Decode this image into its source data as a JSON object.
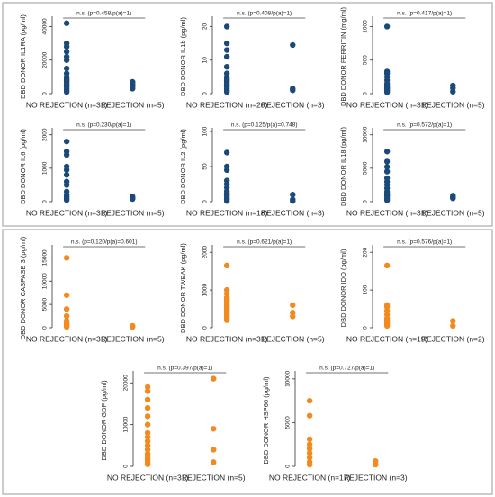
{
  "chart_data": [
    {
      "type": "strip",
      "ylabel": "DBD DONOR IL1RA (pg/ml)",
      "annotation": "n.s. (p=0.458/p(a)=1)",
      "categories": [
        "NO REJECTION (n=31)",
        "REJECTION (n=5)"
      ],
      "color": "#1b4a78",
      "ylim": [
        0,
        44000
      ],
      "yticks": [
        0,
        20000,
        40000
      ],
      "values": [
        [
          42000,
          30000,
          28000,
          25000,
          22000,
          20000,
          15000,
          12000,
          10000,
          9000,
          8000,
          7000,
          6000,
          5000,
          4000,
          3000,
          2000,
          1000
        ],
        [
          7000,
          6000,
          5000,
          4000,
          3000
        ]
      ]
    },
    {
      "type": "strip",
      "ylabel": "DBD DONOR IL1b (pg/ml)",
      "annotation": "n.s. (p=0.408/p(a)=1)",
      "categories": [
        "NO REJECTION (n=20)",
        "REJECTION (n=3)"
      ],
      "color": "#1b4a78",
      "ylim": [
        0,
        22
      ],
      "yticks": [
        0,
        10,
        20
      ],
      "values": [
        [
          20,
          15,
          13,
          11,
          8,
          6,
          5,
          4.5,
          4,
          3.5,
          3,
          2.5,
          2,
          1.5,
          1,
          0.5
        ],
        [
          14.5,
          1.5,
          1
        ]
      ]
    },
    {
      "type": "strip",
      "ylabel": "DBD DONOR FERRITIN (mg/ml)",
      "annotation": "n.s. (p=0.417/p(a)=1)",
      "categories": [
        "NO REJECTION (n=31)",
        "REJECTION (n=5)"
      ],
      "color": "#1b4a78",
      "ylim": [
        0,
        1100
      ],
      "yticks": [
        0,
        500,
        1000
      ],
      "values": [
        [
          1000,
          330,
          300,
          250,
          200,
          150,
          120,
          100,
          80,
          60,
          40,
          20
        ],
        [
          120,
          80,
          30
        ]
      ]
    },
    {
      "type": "strip",
      "ylabel": "DBD DONOR IL6 (pg/ml)",
      "annotation": "n.s. (p=0.230/p(a)=1)",
      "categories": [
        "NO REJECTION (n=31)",
        "REJECTION (n=5)"
      ],
      "color": "#1b4a78",
      "ylim": [
        0,
        2100
      ],
      "yticks": [
        0,
        1000,
        2000
      ],
      "values": [
        [
          1800,
          1500,
          1400,
          1050,
          950,
          800,
          600,
          500,
          300,
          200,
          150,
          100,
          50
        ],
        [
          150,
          100,
          80
        ]
      ]
    },
    {
      "type": "strip",
      "ylabel": "DBD DONOR IL2 (pg/ml)",
      "annotation": "n.s. (p=0.125/p(a)=0.748)",
      "categories": [
        "NO REJECTION (n=18)",
        "REJECTION (n=3)"
      ],
      "color": "#1b4a78",
      "ylim": [
        0,
        100
      ],
      "yticks": [
        0,
        50,
        100
      ],
      "values": [
        [
          70,
          50,
          45,
          30,
          25,
          20,
          15,
          12,
          10,
          8,
          5,
          3,
          1
        ],
        [
          10,
          3,
          1
        ]
      ]
    },
    {
      "type": "strip",
      "ylabel": "DBD DONOR IL18 (pg/ml)",
      "annotation": "n.s. (p=0.572/p(a)=1)",
      "categories": [
        "NO REJECTION (n=31)",
        "REJECTION (n=5)"
      ],
      "color": "#1b4a78",
      "ylim": [
        0,
        10500
      ],
      "yticks": [
        0,
        5000,
        10000
      ],
      "values": [
        [
          7500,
          6000,
          5200,
          4500,
          3500,
          3000,
          2500,
          2000,
          1500,
          1200,
          1000,
          800,
          500,
          200
        ],
        [
          900,
          700,
          600,
          500
        ]
      ]
    },
    {
      "type": "strip",
      "ylabel": "DBD DONOR CASPASE 3 (pg/ml)",
      "annotation": "n.s. (p=0.120/p(a)=0.601)",
      "categories": [
        "NO REJECTION (n=31)",
        "REJECTION (n=5)"
      ],
      "color": "#f28a1e",
      "ylim": [
        0,
        17000
      ],
      "yticks": [
        0,
        5000,
        10000,
        15000
      ],
      "values": [
        [
          15000,
          7000,
          4000,
          2500,
          1500,
          1000,
          700,
          400,
          200
        ],
        [
          400,
          200
        ]
      ]
    },
    {
      "type": "strip",
      "ylabel": "DBD DONOR TWEAK (pg/ml)",
      "annotation": "n.s. (p=0.621/p(a)=1)",
      "categories": [
        "NO REJECTION (n=31)",
        "REJECTION (n=5)"
      ],
      "color": "#f28a1e",
      "ylim": [
        0,
        2100
      ],
      "yticks": [
        0,
        1000,
        2000
      ],
      "values": [
        [
          1650,
          1000,
          900,
          800,
          750,
          700,
          650,
          600,
          550,
          500,
          450,
          400,
          350,
          300,
          250,
          200
        ],
        [
          600,
          400,
          300
        ]
      ]
    },
    {
      "type": "strip",
      "ylabel": "DBD DONOR IDO (pg/ml)",
      "annotation": "n.s. (p=0.576/p(a)=1)",
      "categories": [
        "NO REJECTION (n=19)",
        "REJECTION (n=2)"
      ],
      "color": "#f28a1e",
      "ylim": [
        0,
        210
      ],
      "yticks": [
        0,
        100,
        200
      ],
      "values": [
        [
          165,
          60,
          55,
          45,
          35,
          25,
          20,
          15,
          10,
          5
        ],
        [
          18,
          5
        ]
      ]
    },
    {
      "type": "strip",
      "ylabel": "DBD DONOR GDF (pg/ml)",
      "annotation": "n.s. (p=0.397/p(a)=1)",
      "categories": [
        "NO REJECTION (n=31)",
        "REJECTION (n=5)"
      ],
      "color": "#f28a1e",
      "ylim": [
        0,
        22000
      ],
      "yticks": [
        0,
        10000,
        20000
      ],
      "values": [
        [
          19000,
          18000,
          16000,
          14000,
          12000,
          10000,
          8000,
          7000,
          6000,
          5000,
          4000,
          3000,
          2500,
          2000,
          1500,
          1000,
          500
        ],
        [
          21000,
          9000,
          4000,
          1000
        ]
      ]
    },
    {
      "type": "strip",
      "ylabel": "DBD DONOR HSP60 (pg/ml)",
      "annotation": "n.s. (p=0.727/p(a)=1)",
      "categories": [
        "NO REJECTION (n=17)",
        "REJECTION (n=3)"
      ],
      "color": "#f28a1e",
      "ylim": [
        0,
        10500
      ],
      "yticks": [
        0,
        5000,
        10000
      ],
      "values": [
        [
          7500,
          5800,
          3100,
          2500,
          2000,
          1500,
          1000,
          500,
          200
        ],
        [
          600,
          200
        ]
      ]
    }
  ]
}
